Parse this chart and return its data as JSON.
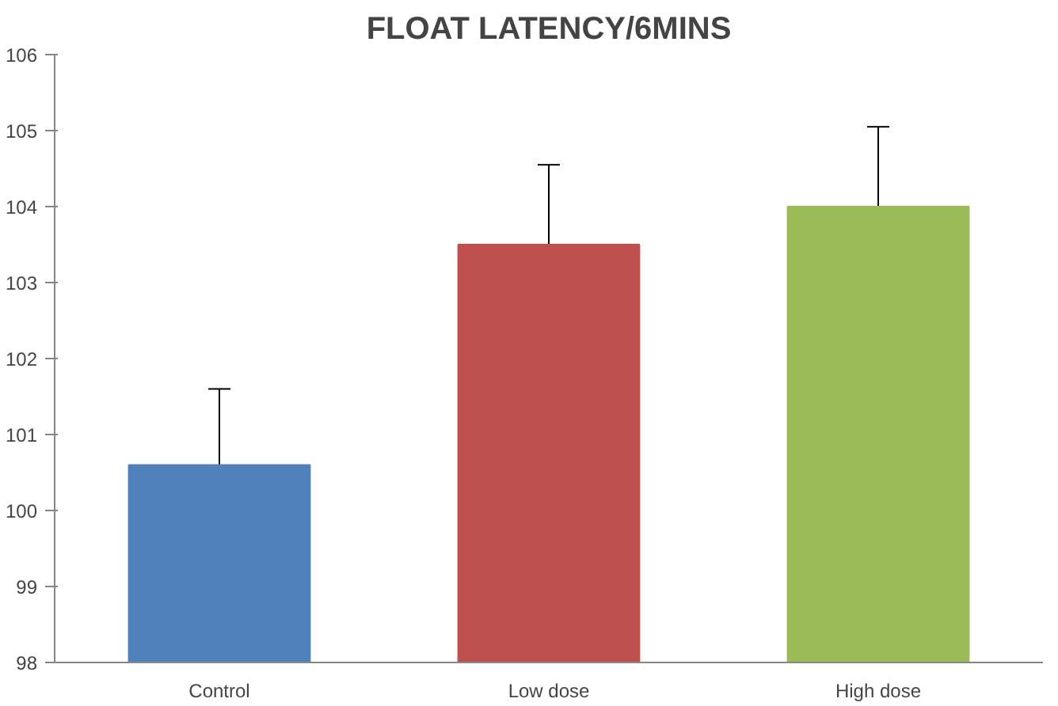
{
  "chart_data": {
    "type": "bar",
    "title": "FLOAT LATENCY/6MINS",
    "categories": [
      "Control",
      "Low dose",
      "High dose"
    ],
    "values": [
      100.6,
      103.5,
      104.0
    ],
    "colors": [
      "#4f81bd",
      "#c0504d",
      "#9bbb59"
    ],
    "errors": [
      [
        100.6,
        101.6
      ],
      [
        103.5,
        104.55
      ],
      [
        104.0,
        105.05
      ]
    ],
    "ylim": [
      98,
      106
    ],
    "yticks": [
      98,
      99,
      100,
      101,
      102,
      103,
      104,
      105,
      106
    ],
    "grid": false
  }
}
